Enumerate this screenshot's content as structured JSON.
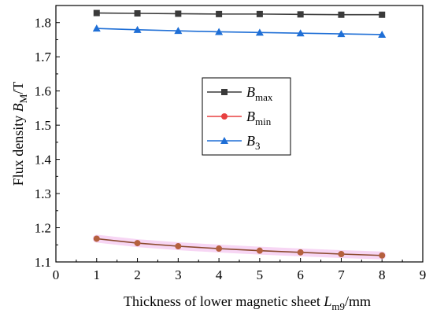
{
  "chart_data": {
    "type": "line",
    "x": [
      1,
      2,
      3,
      4,
      5,
      6,
      7,
      8
    ],
    "xlim": [
      0,
      9
    ],
    "ylim": [
      1.1,
      1.85
    ],
    "xticks": [
      "0",
      "1",
      "2",
      "3",
      "4",
      "5",
      "6",
      "7",
      "8",
      "9"
    ],
    "yticks": [
      "1.1",
      "1.2",
      "1.3",
      "1.4",
      "1.5",
      "1.6",
      "1.7",
      "1.8"
    ],
    "xlabel": {
      "main": "Thickness of lower magnetic sheet",
      "var": "L",
      "sub": "m9",
      "unit": "/mm"
    },
    "ylabel": {
      "main": "Flux density",
      "var": "B",
      "sub": "M",
      "unit": "/T"
    },
    "legend_position": "center",
    "grid": false,
    "series": [
      {
        "name_main": "B",
        "name_sub": "max",
        "marker": "square",
        "color": "#3a3a3a",
        "values": [
          1.828,
          1.827,
          1.826,
          1.825,
          1.825,
          1.824,
          1.823,
          1.823
        ]
      },
      {
        "name_main": "B",
        "name_sub": "min",
        "marker": "circle",
        "color": "#e84040",
        "values": [
          1.168,
          1.155,
          1.146,
          1.139,
          1.133,
          1.128,
          1.123,
          1.119
        ]
      },
      {
        "name_main": "B",
        "name_sub": "3",
        "marker": "triangle",
        "color": "#1f6fd6",
        "values": [
          1.783,
          1.779,
          1.776,
          1.773,
          1.771,
          1.769,
          1.767,
          1.765
        ]
      }
    ]
  }
}
